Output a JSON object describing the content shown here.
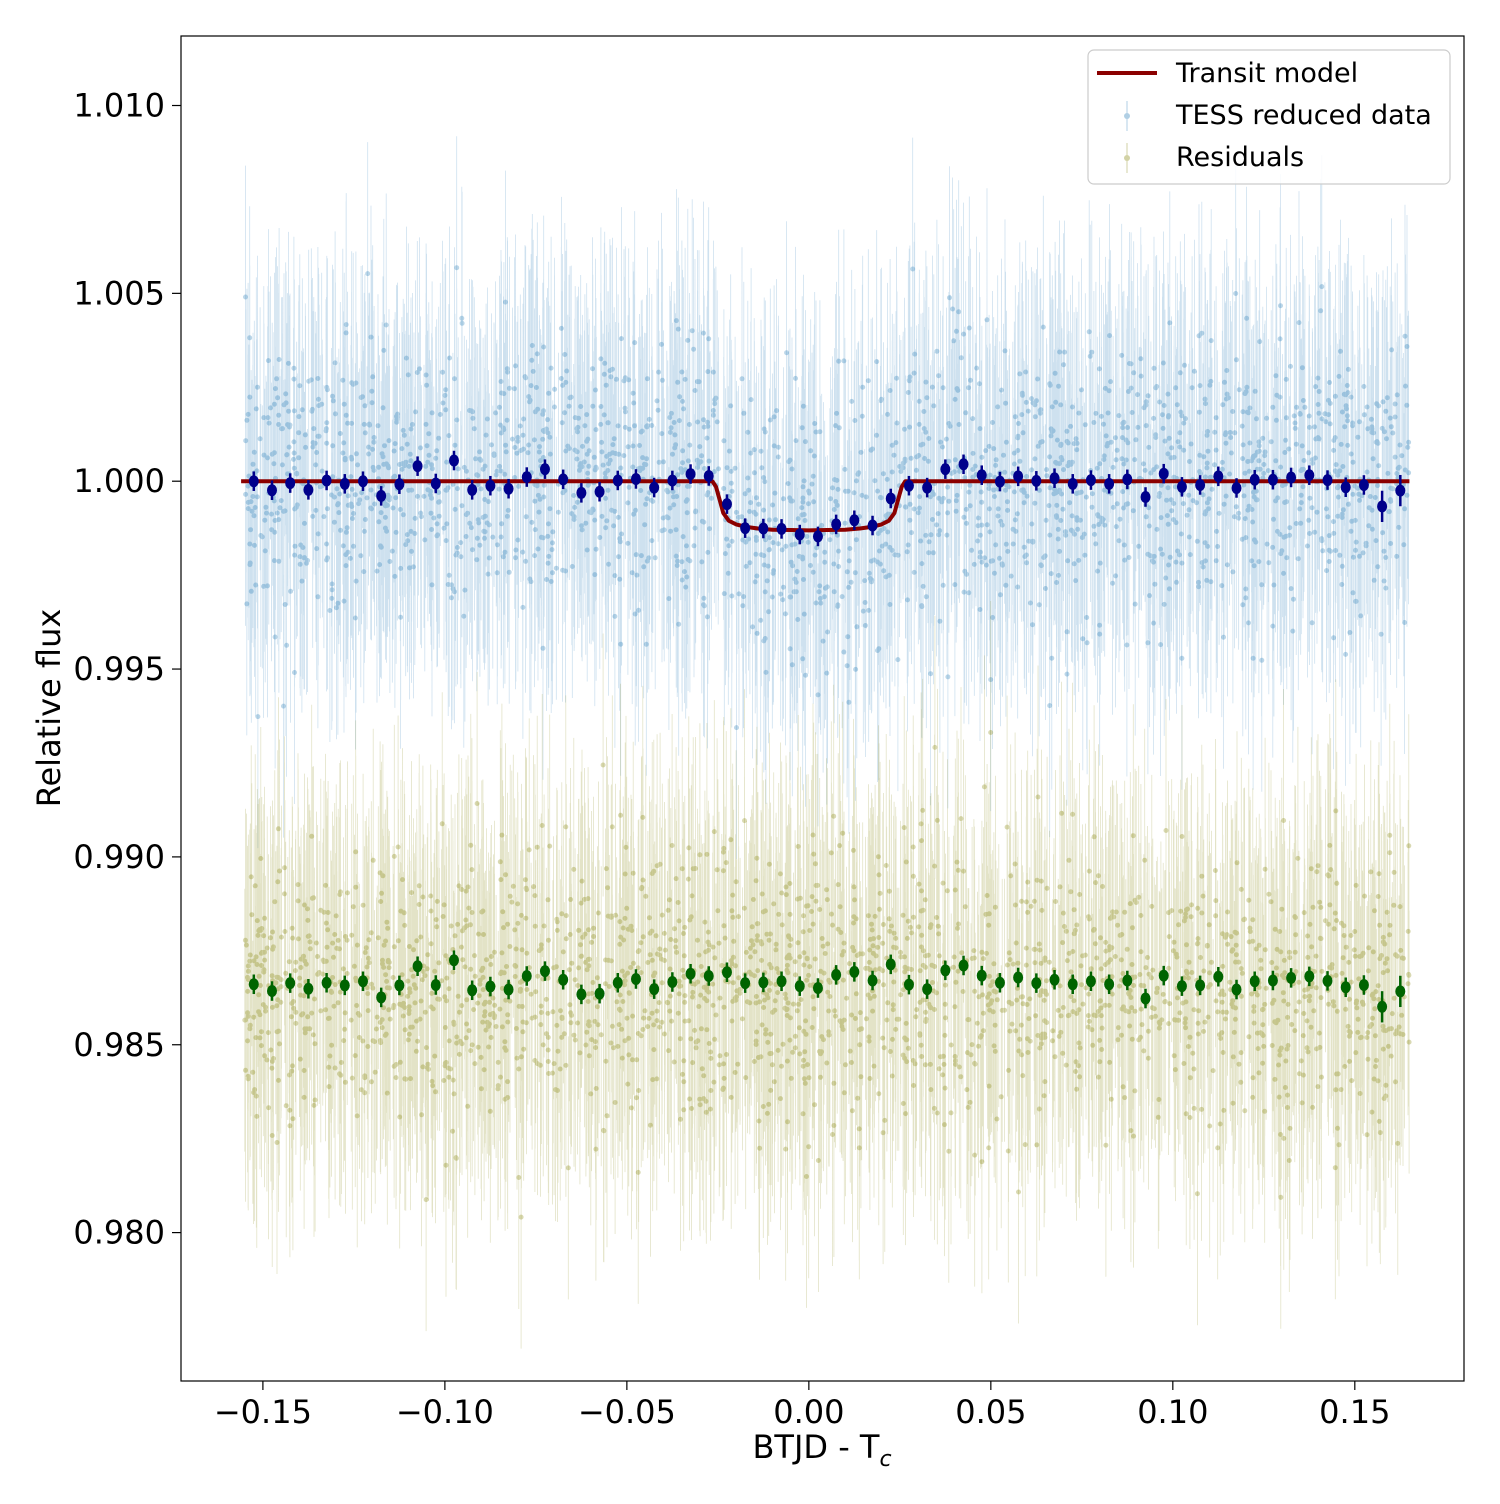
{
  "chart_data": {
    "type": "scatter",
    "title": "",
    "xlabel": "BTJD - T",
    "xlabel_subscript": "c",
    "ylabel": "Relative flux",
    "xlim": [
      -0.1725,
      0.18
    ],
    "ylim": [
      0.97605,
      1.01185
    ],
    "x_ticks": [
      -0.15,
      -0.1,
      -0.05,
      0.0,
      0.05,
      0.1,
      0.15
    ],
    "x_tick_labels": [
      "−0.15",
      "−0.10",
      "−0.05",
      "0.00",
      "0.05",
      "0.10",
      "0.15"
    ],
    "y_ticks": [
      0.98,
      0.985,
      0.99,
      0.995,
      1.0,
      1.005,
      1.01
    ],
    "y_tick_labels": [
      "0.980",
      "0.985",
      "0.990",
      "0.995",
      "1.000",
      "1.005",
      "1.010"
    ],
    "grid": false,
    "legend_position": "top-right",
    "legend": [
      {
        "label": "Transit model",
        "kind": "line",
        "color": "#8b0000"
      },
      {
        "label": "TESS reduced data",
        "kind": "errorbar-point",
        "color": "#1f77b4"
      },
      {
        "label": "Residuals",
        "kind": "errorbar-point",
        "color": "#808000"
      }
    ],
    "raw_data_description_values": {
      "tess_reduced_data": {
        "x_range": [
          -0.155,
          0.165
        ],
        "baseline": 1.0,
        "scatter_sigma": 0.0018,
        "errorbar": 0.0035,
        "color": "#1f77b4"
      },
      "residuals": {
        "x_range": [
          -0.155,
          0.165
        ],
        "baseline": 0.9865,
        "scatter_sigma": 0.0018,
        "errorbar": 0.0035,
        "color": "#808000"
      }
    },
    "series": [
      {
        "name": "Transit model",
        "style": "line",
        "color": "#8b0000",
        "x": [
          -0.156,
          -0.0265,
          -0.0255,
          -0.0245,
          -0.0235,
          -0.022,
          -0.02,
          -0.017,
          -0.014,
          -0.01,
          -0.005,
          0.0,
          0.005,
          0.01,
          0.014,
          0.017,
          0.02,
          0.022,
          0.0235,
          0.0245,
          0.0255,
          0.0265,
          0.165
        ],
        "y": [
          1.0,
          1.0,
          0.99985,
          0.9995,
          0.99915,
          0.99895,
          0.99885,
          0.99878,
          0.99874,
          0.99871,
          0.9987,
          0.99869,
          0.9987,
          0.99871,
          0.99874,
          0.99878,
          0.99885,
          0.99895,
          0.99915,
          0.9995,
          0.99985,
          1.0,
          1.0
        ]
      },
      {
        "name": "TESS reduced data",
        "style": "binned-points",
        "color": "#00008b",
        "x": [
          -0.1525,
          -0.1475,
          -0.1425,
          -0.1375,
          -0.1325,
          -0.1275,
          -0.1225,
          -0.1175,
          -0.1125,
          -0.1075,
          -0.1025,
          -0.0975,
          -0.0925,
          -0.0875,
          -0.0825,
          -0.0775,
          -0.0725,
          -0.0675,
          -0.0625,
          -0.0575,
          -0.0525,
          -0.0475,
          -0.0425,
          -0.0375,
          -0.0325,
          -0.0275,
          -0.0225,
          -0.0175,
          -0.0125,
          -0.0075,
          -0.0025,
          0.0025,
          0.0075,
          0.0125,
          0.0175,
          0.0225,
          0.0275,
          0.0325,
          0.0375,
          0.0425,
          0.0475,
          0.0525,
          0.0575,
          0.0625,
          0.0675,
          0.0725,
          0.0775,
          0.0825,
          0.0875,
          0.0925,
          0.0975,
          0.1025,
          0.1075,
          0.1125,
          0.1175,
          0.1225,
          0.1275,
          0.1325,
          0.1375,
          0.1425,
          0.1475,
          0.1525,
          0.1575,
          0.1625
        ],
        "y": [
          1.0,
          0.99976,
          0.99995,
          0.99977,
          1.00002,
          0.99993,
          1.0,
          0.99961,
          0.99992,
          1.0004,
          0.99994,
          1.00055,
          0.99977,
          0.99988,
          0.9998,
          1.00011,
          1.00032,
          1.00005,
          0.99969,
          0.99972,
          1.00002,
          1.00006,
          0.99983,
          1.00002,
          1.00019,
          1.00014,
          0.99939,
          0.99875,
          0.99874,
          0.99873,
          0.99858,
          0.99853,
          0.99885,
          0.99896,
          0.99882,
          0.99954,
          0.99988,
          0.99983,
          1.00032,
          1.00045,
          1.00016,
          0.99999,
          1.00013,
          1.00001,
          1.00008,
          0.99993,
          1.00003,
          0.99993,
          1.00005,
          0.99958,
          1.0002,
          0.99985,
          0.9999,
          1.00013,
          0.99982,
          1.00004,
          1.00004,
          1.0001,
          1.00016,
          1.00003,
          0.99984,
          0.9999,
          0.99933,
          0.99975
        ],
        "errorbar": 0.00026
      },
      {
        "name": "Residuals",
        "style": "binned-points",
        "color": "#006400",
        "x": [
          -0.1525,
          -0.1475,
          -0.1425,
          -0.1375,
          -0.1325,
          -0.1275,
          -0.1225,
          -0.1175,
          -0.1125,
          -0.1075,
          -0.1025,
          -0.0975,
          -0.0925,
          -0.0875,
          -0.0825,
          -0.0775,
          -0.0725,
          -0.0675,
          -0.0625,
          -0.0575,
          -0.0525,
          -0.0475,
          -0.0425,
          -0.0375,
          -0.0325,
          -0.0275,
          -0.0225,
          -0.0175,
          -0.0125,
          -0.0075,
          -0.0025,
          0.0025,
          0.0075,
          0.0125,
          0.0175,
          0.0225,
          0.0275,
          0.0325,
          0.0375,
          0.0425,
          0.0475,
          0.0525,
          0.0575,
          0.0625,
          0.0675,
          0.0725,
          0.0775,
          0.0825,
          0.0875,
          0.0925,
          0.0975,
          0.1025,
          0.1075,
          0.1125,
          0.1175,
          0.1225,
          0.1275,
          0.1325,
          0.1375,
          0.1425,
          0.1475,
          0.1525,
          0.1575,
          0.1625
        ],
        "y": [
          0.98661,
          0.98643,
          0.98664,
          0.98649,
          0.98665,
          0.98658,
          0.98669,
          0.98626,
          0.98658,
          0.98709,
          0.98659,
          0.98725,
          0.98645,
          0.98655,
          0.98647,
          0.98683,
          0.98696,
          0.98673,
          0.98634,
          0.98636,
          0.98665,
          0.98675,
          0.98648,
          0.98667,
          0.98689,
          0.98683,
          0.98693,
          0.98664,
          0.98666,
          0.98669,
          0.98656,
          0.98651,
          0.98686,
          0.98694,
          0.98671,
          0.98714,
          0.9866,
          0.98648,
          0.98698,
          0.98711,
          0.98684,
          0.98665,
          0.98679,
          0.98664,
          0.98673,
          0.98661,
          0.98669,
          0.98661,
          0.98671,
          0.98623,
          0.98684,
          0.98656,
          0.98658,
          0.98681,
          0.98647,
          0.98669,
          0.98671,
          0.98678,
          0.98682,
          0.9867,
          0.98653,
          0.98659,
          0.98601,
          0.98642
        ],
        "errorbar": 0.00026
      }
    ]
  }
}
